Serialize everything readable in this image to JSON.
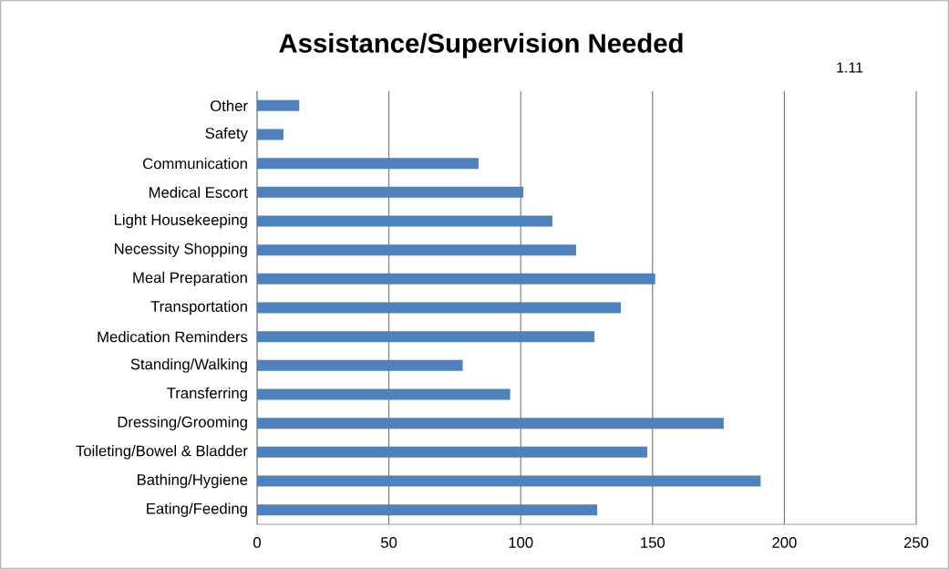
{
  "chart_data": {
    "type": "bar",
    "orientation": "horizontal",
    "title": "Assistance/Supervision Needed",
    "annotations": [
      "1.11"
    ],
    "categories": [
      "Other",
      "Safety",
      "Communication",
      "Medical Escort",
      "Light Housekeeping",
      "Necessity Shopping",
      "Meal Preparation",
      "Transportation",
      "Medication Reminders",
      "Standing/Walking",
      "Transferring",
      "Dressing/Grooming",
      "Toileting/Bowel & Bladder",
      "Bathing/Hygiene",
      "Eating/Feeding"
    ],
    "values": [
      16,
      10,
      84,
      101,
      112,
      121,
      151,
      138,
      128,
      78,
      96,
      177,
      148,
      191,
      129
    ],
    "color": "#4f81bd",
    "xlim": [
      0,
      250
    ],
    "xticks": [
      0,
      50,
      100,
      150,
      200,
      250
    ],
    "grid": "x"
  }
}
